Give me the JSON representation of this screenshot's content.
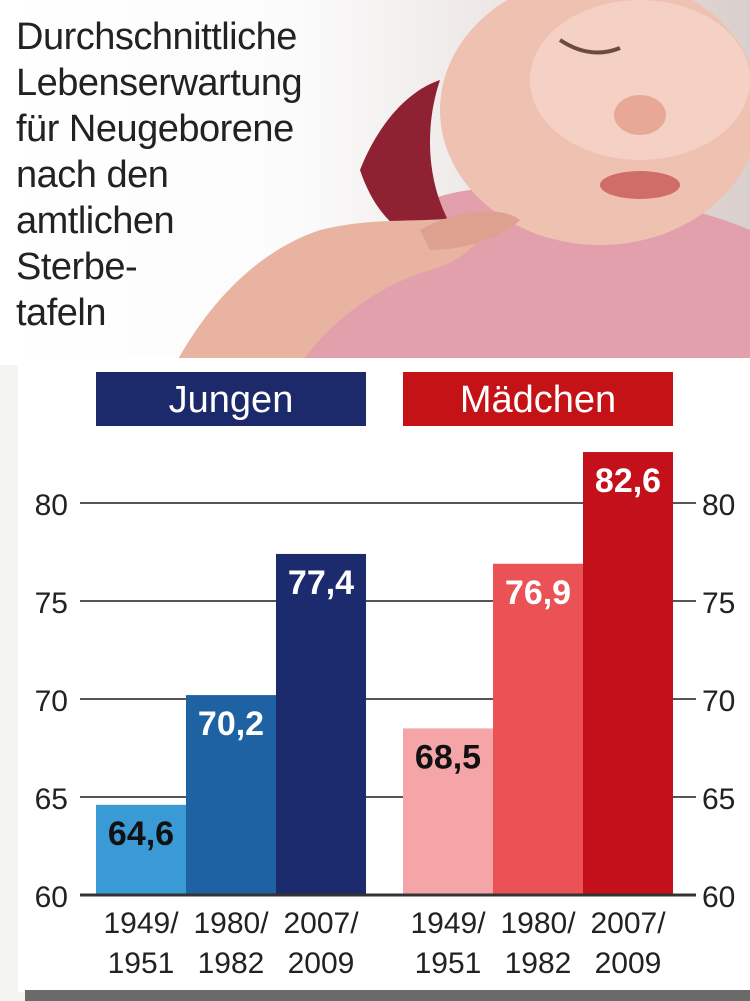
{
  "headline_lines": [
    "Durchschnittliche",
    "Lebenserwartung",
    "für Neugeborene",
    "nach den",
    "amtlichen",
    "Sterbe-",
    "tafeln"
  ],
  "colors": {
    "boys_header": "#1c2a6b",
    "girls_header": "#c51217",
    "axis": "#333333",
    "grid": "#555555"
  },
  "chart_data": {
    "type": "bar",
    "ylim": [
      60,
      85
    ],
    "yticks": [
      60,
      65,
      70,
      75,
      80
    ],
    "grid": true,
    "groups": [
      {
        "name": "Jungen",
        "color": "#1c2a6b",
        "categories": [
          [
            "1949/",
            "1951"
          ],
          [
            "1980/",
            "1982"
          ],
          [
            "2007/",
            "2009"
          ]
        ],
        "values": [
          64.6,
          70.2,
          77.4
        ],
        "labels": [
          "64,6",
          "70,2",
          "77,4"
        ],
        "bar_colors": [
          "#3a9ad6",
          "#1f62a4",
          "#1b2b6e"
        ],
        "label_colors": [
          "#111111",
          "#ffffff",
          "#ffffff"
        ]
      },
      {
        "name": "Mädchen",
        "color": "#c51217",
        "categories": [
          [
            "1949/",
            "1951"
          ],
          [
            "1980/",
            "1982"
          ],
          [
            "2007/",
            "2009"
          ]
        ],
        "values": [
          68.5,
          76.9,
          82.6
        ],
        "labels": [
          "68,5",
          "76,9",
          "82,6"
        ],
        "bar_colors": [
          "#f5a4a8",
          "#ea5256",
          "#c4101b"
        ],
        "label_colors": [
          "#111111",
          "#ffffff",
          "#ffffff"
        ]
      }
    ]
  }
}
